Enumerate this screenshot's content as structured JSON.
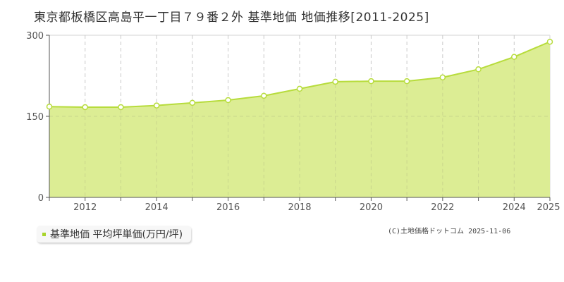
{
  "header": {
    "title": "東京都板橋区高島平一丁目７９番２外 基準地価 地価推移[2011-2025]"
  },
  "legend": {
    "label": "基準地価 平均坪単価(万円/坪)",
    "color": "#a8d42a"
  },
  "footer": {
    "credit": "(C)土地価格ドットコム 2025-11-06"
  },
  "colors": {
    "fill": "#dced94",
    "line": "#b7dc3c",
    "marker_fill": "#ffffff",
    "marker_stroke": "#b7dc3c",
    "grid": "#c8c8c8",
    "axis": "#555555"
  },
  "chart_data": {
    "type": "area",
    "title": "東京都板橋区高島平一丁目７９番２外 基準地価 地価推移[2011-2025]",
    "xlabel": "",
    "ylabel": "",
    "x": [
      2011,
      2012,
      2013,
      2014,
      2015,
      2016,
      2017,
      2018,
      2019,
      2020,
      2021,
      2022,
      2023,
      2024,
      2025
    ],
    "series": [
      {
        "name": "基準地価 平均坪単価(万円/坪)",
        "values": [
          168,
          167,
          167,
          170,
          175,
          180,
          188,
          201,
          214,
          215,
          215,
          222,
          237,
          260,
          288
        ]
      }
    ],
    "ylim": [
      0,
      300
    ],
    "yticks": [
      0,
      150,
      300
    ],
    "xtick_labels": [
      "2012",
      "2014",
      "2016",
      "2018",
      "2020",
      "2022",
      "2024",
      "2025"
    ],
    "grid": true,
    "legend_position": "bottom-left"
  }
}
